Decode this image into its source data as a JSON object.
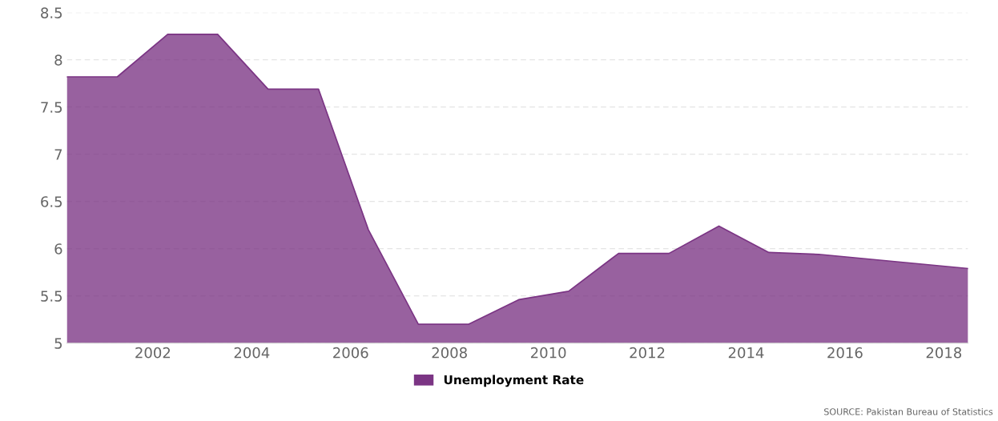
{
  "chart_data": {
    "type": "area",
    "x": [
      2000.26,
      2001.28,
      2002.3,
      2003.31,
      2004.33,
      2005.35,
      2006.36,
      2007.37,
      2008.39,
      2009.4,
      2010.41,
      2011.42,
      2012.44,
      2013.45,
      2014.46,
      2015.47,
      2018.49
    ],
    "series": [
      {
        "name": "Unemployment Rate",
        "color": "#7b3584",
        "values": [
          7.82,
          7.82,
          8.27,
          8.27,
          7.69,
          7.69,
          6.2,
          5.2,
          5.2,
          5.46,
          5.55,
          5.95,
          5.95,
          6.24,
          5.96,
          5.94,
          5.79
        ]
      }
    ],
    "xlim": [
      2000.26,
      2018.49
    ],
    "xticks": [
      2002,
      2004,
      2006,
      2008,
      2010,
      2012,
      2014,
      2016,
      2018
    ],
    "ylim": [
      5,
      8.5
    ],
    "yticks": [
      5,
      5.5,
      6,
      6.5,
      7,
      7.5,
      8,
      8.5
    ],
    "grid": "y",
    "legend": "bottom",
    "annotations": [
      "SOURCE: Pakistan Bureau of Statistics"
    ]
  }
}
